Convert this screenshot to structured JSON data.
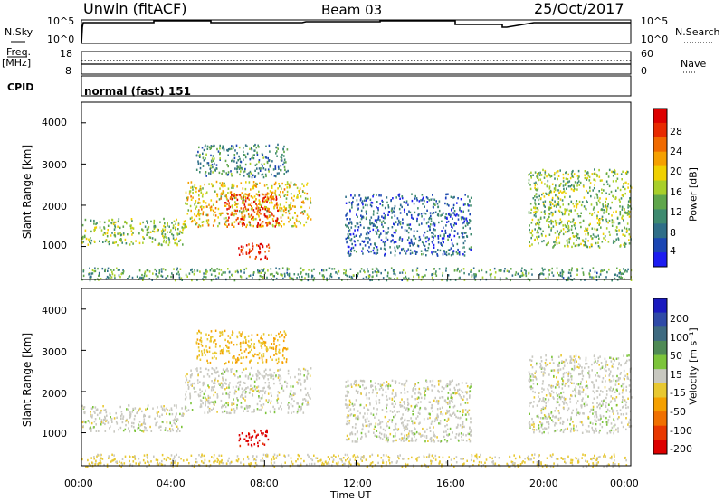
{
  "header": {
    "station": "Unwin (fitACF)",
    "beam": "Beam 03",
    "date": "25/Oct/2017"
  },
  "params": {
    "nsky_label": "N.Sky",
    "nsky_ticks": [
      "10^5",
      "10^0"
    ],
    "nsearch_label": "N.Search",
    "freq_label_1": "Freq.",
    "freq_label_2": "[MHz]",
    "freq_ticks": [
      "18",
      "8"
    ],
    "nave_label": "Nave",
    "nave_ticks": [
      "60",
      "0"
    ],
    "cpid_label": "CPID",
    "cpid_value": "normal (fast) 151"
  },
  "colors": {
    "power_scale": [
      "#1c1cf0",
      "#1b46b3",
      "#2f6e88",
      "#3e8a6f",
      "#5fa64b",
      "#a8cf2a",
      "#f0d000",
      "#f5a000",
      "#f06a00",
      "#e82a00",
      "#dd0000"
    ],
    "velocity_scale": [
      "#1b1bbf",
      "#2f4aa7",
      "#3e6a80",
      "#4f8a55",
      "#7cc43a",
      "#c8c8c0",
      "#e8c830",
      "#f5a000",
      "#f07000",
      "#e83800",
      "#dd0000"
    ]
  },
  "chart_data": [
    {
      "type": "heatmap",
      "name": "power",
      "ylabel": "Slant Range [km]",
      "yticks": [
        "4000",
        "3000",
        "2000",
        "1000"
      ],
      "ylim": [
        200,
        4500
      ],
      "xlim": [
        "00:00",
        "24:00"
      ],
      "colorbar_label": "Power [dB]",
      "colorbar_ticks": [
        "28",
        "24",
        "20",
        "16",
        "12",
        "8",
        "4"
      ],
      "colorbar_range": [
        0,
        32
      ],
      "regions": [
        {
          "t": [
            0.0,
            4.5
          ],
          "r": [
            1050,
            1700
          ],
          "level": 0.45
        },
        {
          "t": [
            4.5,
            10.0
          ],
          "r": [
            1500,
            2600
          ],
          "level": 0.6
        },
        {
          "t": [
            6.2,
            8.6
          ],
          "r": [
            1500,
            2300
          ],
          "level": 0.85
        },
        {
          "t": [
            6.8,
            8.2
          ],
          "r": [
            700,
            1100
          ],
          "level": 0.9
        },
        {
          "t": [
            5.0,
            9.0
          ],
          "r": [
            2700,
            3500
          ],
          "level": 0.3
        },
        {
          "t": [
            11.5,
            17.0
          ],
          "r": [
            800,
            2300
          ],
          "level": 0.2
        },
        {
          "t": [
            19.5,
            24.0
          ],
          "r": [
            1000,
            2900
          ],
          "level": 0.45
        },
        {
          "t": [
            0.0,
            24.0
          ],
          "r": [
            200,
            500
          ],
          "level": 0.35
        }
      ]
    },
    {
      "type": "heatmap",
      "name": "velocity",
      "ylabel": "Slant Range [km]",
      "yticks": [
        "4000",
        "3000",
        "2000",
        "1000"
      ],
      "ylim": [
        200,
        4500
      ],
      "xlim": [
        "00:00",
        "24:00"
      ],
      "xticks": [
        "00:00",
        "04:00",
        "08:00",
        "12:00",
        "16:00",
        "20:00",
        "00:00"
      ],
      "xlabel": "Time UT",
      "colorbar_label": "Velocity [m s⁻¹]",
      "colorbar_ticks": [
        "200",
        "100",
        "50",
        "15",
        "-15",
        "-50",
        "-100",
        "-200"
      ],
      "colorbar_range": [
        -250,
        250
      ],
      "regions": [
        {
          "t": [
            0.0,
            4.5
          ],
          "r": [
            1050,
            1700
          ],
          "v": 0
        },
        {
          "t": [
            4.5,
            10.0
          ],
          "r": [
            1500,
            2600
          ],
          "v": 0
        },
        {
          "t": [
            6.8,
            8.2
          ],
          "r": [
            700,
            1100
          ],
          "v": -220
        },
        {
          "t": [
            5.0,
            9.0
          ],
          "r": [
            2700,
            3500
          ],
          "v": -60
        },
        {
          "t": [
            11.5,
            17.0
          ],
          "r": [
            800,
            2300
          ],
          "v": 0
        },
        {
          "t": [
            19.5,
            24.0
          ],
          "r": [
            1000,
            2900
          ],
          "v": 0
        },
        {
          "t": [
            0.0,
            24.0
          ],
          "r": [
            200,
            500
          ],
          "v": -30
        }
      ]
    }
  ]
}
